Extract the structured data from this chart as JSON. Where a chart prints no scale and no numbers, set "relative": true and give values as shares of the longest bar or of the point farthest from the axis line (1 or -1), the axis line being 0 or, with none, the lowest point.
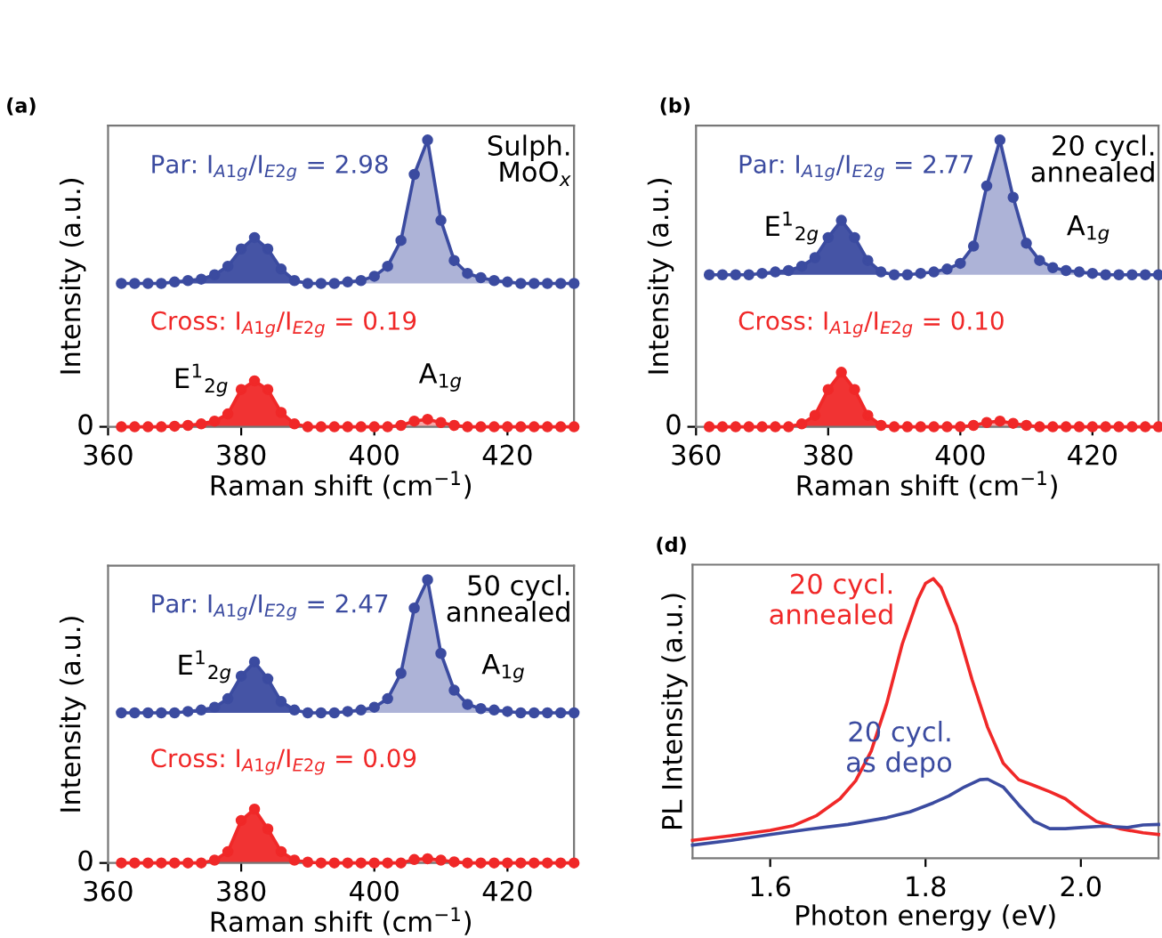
{
  "chart_data": [
    {
      "type": "area",
      "title": "(a)",
      "xlabel": "Raman shift (cm$^{−1}$)",
      "ylabel": "Intensity (a.u.)",
      "relative": true,
      "xlim": [
        360,
        430
      ],
      "xticks": [
        360,
        380,
        400,
        420
      ],
      "marker": "circle",
      "grid": false,
      "legend": false,
      "x": [
        362,
        364,
        366,
        368,
        370,
        372,
        374,
        376,
        378,
        380,
        382,
        384,
        386,
        388,
        390,
        392,
        394,
        396,
        398,
        400,
        402,
        404,
        406,
        408,
        410,
        412,
        414,
        416,
        418,
        420,
        422,
        424,
        426,
        428,
        430
      ],
      "series": [
        {
          "name": "Par: I$_{A1g}$/I$_{E2g}$ = 2.98",
          "color": "#3b4ba0",
          "values": [
            0.5,
            0.5,
            0.5,
            0.5,
            0.505,
            0.51,
            0.515,
            0.53,
            0.56,
            0.62,
            0.66,
            0.62,
            0.55,
            0.51,
            0.5,
            0.5,
            0.5,
            0.505,
            0.51,
            0.525,
            0.56,
            0.65,
            0.88,
            1.0,
            0.72,
            0.58,
            0.535,
            0.52,
            0.51,
            0.505,
            0.5,
            0.5,
            0.5,
            0.5,
            0.5
          ]
        },
        {
          "name": "Cross: I$_{A1g}$/I$_{E2g}$ = 0.19",
          "color": "#f02828",
          "values": [
            0,
            0,
            0,
            0,
            0.002,
            0.005,
            0.01,
            0.02,
            0.045,
            0.13,
            0.16,
            0.13,
            0.05,
            0.01,
            0,
            0,
            0,
            0,
            0,
            0,
            0,
            0.005,
            0.02,
            0.026,
            0.015,
            0.005,
            0,
            0,
            0,
            0,
            0,
            0,
            0,
            0,
            0
          ]
        }
      ],
      "annotations": [
        "Sulph.\nMoO$_{x}$",
        "E$^{1}$$_{2g}$",
        "A$_{1g}$",
        "0"
      ]
    },
    {
      "type": "area",
      "title": "(b)",
      "xlabel": "Raman shift (cm$^{−1}$)",
      "ylabel": "Intensity (a.u.)",
      "relative": true,
      "xlim": [
        360,
        430
      ],
      "xticks": [
        360,
        380,
        400,
        420
      ],
      "marker": "circle",
      "grid": false,
      "legend": false,
      "x": [
        362,
        364,
        366,
        368,
        370,
        372,
        374,
        376,
        378,
        380,
        382,
        384,
        386,
        388,
        390,
        392,
        394,
        396,
        398,
        400,
        402,
        404,
        406,
        408,
        410,
        412,
        414,
        416,
        418,
        420,
        422,
        424,
        426,
        428,
        430
      ],
      "series": [
        {
          "name": "Par: I$_{A1g}$/I$_{E2g}$ = 2.77",
          "color": "#3b4ba0",
          "values": [
            0.53,
            0.53,
            0.53,
            0.53,
            0.535,
            0.54,
            0.545,
            0.56,
            0.59,
            0.66,
            0.72,
            0.66,
            0.58,
            0.54,
            0.53,
            0.53,
            0.535,
            0.54,
            0.55,
            0.57,
            0.63,
            0.84,
            1.0,
            0.8,
            0.64,
            0.58,
            0.555,
            0.545,
            0.54,
            0.535,
            0.53,
            0.53,
            0.53,
            0.53,
            0.53
          ]
        },
        {
          "name": "Cross: I$_{A1g}$/I$_{E2g}$ = 0.10",
          "color": "#f02828",
          "values": [
            0,
            0,
            0,
            0,
            0,
            0,
            0,
            0.01,
            0.04,
            0.13,
            0.19,
            0.13,
            0.04,
            0.005,
            0,
            0,
            0,
            0,
            0,
            0,
            0.005,
            0.015,
            0.02,
            0.012,
            0.005,
            0,
            0,
            0,
            0,
            0,
            0,
            0,
            0,
            0,
            0
          ]
        }
      ],
      "annotations": [
        "20 cycl.\nannealed",
        "E$^{1}$$_{2g}$",
        "A$_{1g}$",
        "0"
      ]
    },
    {
      "type": "area",
      "xlabel": "Raman shift (cm$^{−1}$)",
      "ylabel": "Intensity (a.u.)",
      "relative": true,
      "xlim": [
        360,
        430
      ],
      "xticks": [
        360,
        380,
        400,
        420
      ],
      "marker": "circle",
      "grid": false,
      "legend": false,
      "x": [
        362,
        364,
        366,
        368,
        370,
        372,
        374,
        376,
        378,
        380,
        382,
        384,
        386,
        388,
        390,
        392,
        394,
        396,
        398,
        400,
        402,
        404,
        406,
        408,
        410,
        412,
        414,
        416,
        418,
        420,
        422,
        424,
        426,
        428,
        430
      ],
      "series": [
        {
          "name": "Par: I$_{A1g}$/I$_{E2g}$ = 2.47",
          "color": "#3b4ba0",
          "values": [
            0.53,
            0.53,
            0.53,
            0.53,
            0.53,
            0.535,
            0.54,
            0.55,
            0.58,
            0.66,
            0.71,
            0.65,
            0.57,
            0.54,
            0.53,
            0.53,
            0.53,
            0.535,
            0.54,
            0.55,
            0.58,
            0.67,
            0.9,
            1.0,
            0.74,
            0.61,
            0.56,
            0.545,
            0.54,
            0.535,
            0.53,
            0.53,
            0.53,
            0.53,
            0.53
          ]
        },
        {
          "name": "Cross: I$_{A1g}$/I$_{E2g}$ = 0.09",
          "color": "#f02828",
          "values": [
            0,
            0,
            0,
            0,
            0,
            0,
            0,
            0.01,
            0.04,
            0.15,
            0.19,
            0.12,
            0.04,
            0.01,
            0.003,
            0,
            0,
            0,
            0,
            0,
            0,
            0,
            0.012,
            0.015,
            0.01,
            0.004,
            0,
            0,
            0,
            0,
            0,
            0,
            0,
            0,
            0
          ]
        }
      ],
      "annotations": [
        "50 cycl.\nannealed",
        "E$^{1}$$_{2g}$",
        "A$_{1g}$",
        "0"
      ]
    },
    {
      "type": "line",
      "title": "(d)",
      "xlabel": "Photon energy (eV)",
      "ylabel": "PL Intensity (a.u.)",
      "relative": true,
      "tick_labels": "x",
      "xlim": [
        1.5,
        2.1
      ],
      "xticks": [
        1.6,
        1.8,
        {
          "value": 2.0,
          "label": "2.0"
        }
      ],
      "marker": "none",
      "grid": false,
      "legend": false,
      "series": [
        {
          "name": "20 cycl.\nannealed",
          "color": "#f02828",
          "x": [
            1.5,
            1.55,
            1.6,
            1.63,
            1.66,
            1.69,
            1.71,
            1.73,
            1.75,
            1.77,
            1.79,
            1.8,
            1.81,
            1.82,
            1.84,
            1.86,
            1.88,
            1.9,
            1.92,
            1.94,
            1.96,
            1.98,
            2.0,
            2.02,
            2.05,
            2.08,
            2.1
          ],
          "values": [
            0.064,
            0.081,
            0.1,
            0.117,
            0.153,
            0.213,
            0.277,
            0.383,
            0.553,
            0.766,
            0.926,
            0.983,
            1.0,
            0.968,
            0.83,
            0.638,
            0.468,
            0.34,
            0.281,
            0.26,
            0.238,
            0.213,
            0.17,
            0.132,
            0.106,
            0.091,
            0.085
          ]
        },
        {
          "name": "20 cycl.\nas depo",
          "color": "#3b4ba0",
          "x": [
            1.5,
            1.55,
            1.6,
            1.65,
            1.7,
            1.75,
            1.78,
            1.81,
            1.83,
            1.85,
            1.87,
            1.88,
            1.9,
            1.92,
            1.94,
            1.96,
            1.98,
            2.0,
            2.03,
            2.06,
            2.08,
            2.1
          ],
          "values": [
            0.047,
            0.064,
            0.085,
            0.104,
            0.121,
            0.145,
            0.166,
            0.198,
            0.223,
            0.255,
            0.281,
            0.283,
            0.255,
            0.191,
            0.132,
            0.106,
            0.106,
            0.11,
            0.115,
            0.11,
            0.119,
            0.121
          ]
        }
      ]
    }
  ]
}
